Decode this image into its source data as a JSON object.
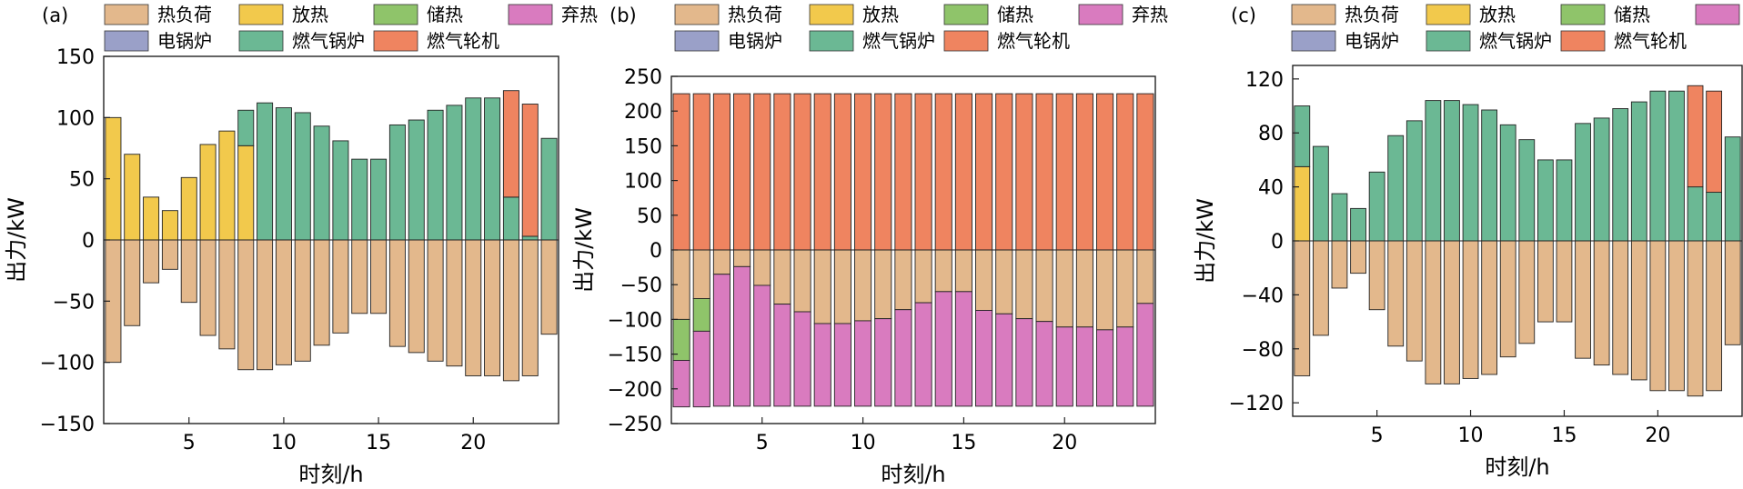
{
  "legend": {
    "items": [
      {
        "label": "热负荷",
        "color": "#E3B88C"
      },
      {
        "label": "放热",
        "color": "#F2C94C"
      },
      {
        "label": "储热",
        "color": "#8FC46A"
      },
      {
        "label": "弃热",
        "color": "#D97BBF"
      },
      {
        "label": "电锅炉",
        "color": "#9AA0C8"
      },
      {
        "label": "燃气锅炉",
        "color": "#6BB894"
      },
      {
        "label": "燃气轮机",
        "color": "#EF8460"
      }
    ]
  },
  "chart_data": [
    {
      "type": "bar",
      "panel_label": "(a)",
      "xlabel": "时刻/h",
      "ylabel": "出力/kW",
      "ylim": [
        -150,
        150
      ],
      "yticks": [
        -150,
        -100,
        -50,
        0,
        50,
        100,
        150
      ],
      "yticklabels": [
        "−150",
        "−100",
        "−50",
        "0",
        "50",
        "100",
        "150"
      ],
      "xticks": [
        5,
        10,
        15,
        20
      ],
      "x": [
        1,
        2,
        3,
        4,
        5,
        6,
        7,
        8,
        9,
        10,
        11,
        12,
        13,
        14,
        15,
        16,
        17,
        18,
        19,
        20,
        21,
        22,
        23,
        24
      ],
      "series": [
        {
          "name": "热负荷",
          "values": [
            -100,
            -70,
            -35,
            -24,
            -51,
            -78,
            -89,
            -106,
            -106,
            -102,
            -99,
            -86,
            -76,
            -60,
            -60,
            -87,
            -92,
            -99,
            -103,
            -111,
            -111,
            -115,
            -111,
            -77
          ]
        },
        {
          "name": "放热",
          "values": [
            100,
            70,
            35,
            24,
            51,
            78,
            89,
            77,
            0,
            0,
            0,
            0,
            0,
            0,
            0,
            0,
            0,
            0,
            0,
            0,
            0,
            0,
            0,
            0
          ]
        },
        {
          "name": "储热",
          "values": [
            0,
            0,
            0,
            0,
            0,
            0,
            0,
            0,
            0,
            0,
            0,
            0,
            0,
            0,
            0,
            0,
            0,
            0,
            0,
            0,
            0,
            0,
            0,
            0
          ]
        },
        {
          "name": "弃热",
          "values": [
            0,
            0,
            0,
            0,
            0,
            0,
            0,
            0,
            0,
            0,
            0,
            0,
            0,
            0,
            0,
            0,
            0,
            0,
            0,
            0,
            0,
            0,
            0,
            0
          ]
        },
        {
          "name": "电锅炉",
          "values": [
            0,
            0,
            0,
            0,
            0,
            0,
            0,
            0,
            0,
            0,
            0,
            0,
            0,
            0,
            0,
            0,
            0,
            0,
            0,
            0,
            0,
            0,
            0,
            0
          ]
        },
        {
          "name": "燃气锅炉",
          "values": [
            0,
            0,
            0,
            0,
            0,
            0,
            0,
            29,
            112,
            108,
            104,
            93,
            81,
            66,
            66,
            94,
            98,
            106,
            110,
            116,
            116,
            35,
            3,
            83
          ]
        },
        {
          "name": "燃气轮机",
          "values": [
            0,
            0,
            0,
            0,
            0,
            0,
            0,
            0,
            0,
            0,
            0,
            0,
            0,
            0,
            0,
            0,
            0,
            0,
            0,
            0,
            0,
            87,
            108,
            0
          ]
        }
      ]
    },
    {
      "type": "bar",
      "panel_label": "(b)",
      "xlabel": "时刻/h",
      "ylabel": "出力/kW",
      "ylim": [
        -250,
        250
      ],
      "yticks": [
        -250,
        -200,
        -150,
        -100,
        -50,
        0,
        50,
        100,
        150,
        200,
        250
      ],
      "yticklabels": [
        "−250",
        "−200",
        "−150",
        "−100",
        "−50",
        "0",
        "50",
        "100",
        "150",
        "200",
        "250"
      ],
      "xticks": [
        5,
        10,
        15,
        20
      ],
      "x": [
        1,
        2,
        3,
        4,
        5,
        6,
        7,
        8,
        9,
        10,
        11,
        12,
        13,
        14,
        15,
        16,
        17,
        18,
        19,
        20,
        21,
        22,
        23,
        24
      ],
      "series": [
        {
          "name": "热负荷",
          "values": [
            -100,
            -70,
            -35,
            -24,
            -51,
            -78,
            -89,
            -106,
            -106,
            -102,
            -99,
            -86,
            -76,
            -60,
            -60,
            -87,
            -92,
            -99,
            -103,
            -111,
            -111,
            -115,
            -111,
            -77
          ]
        },
        {
          "name": "放热",
          "values": [
            0,
            0,
            0,
            0,
            0,
            0,
            0,
            0,
            0,
            0,
            0,
            0,
            0,
            0,
            0,
            0,
            0,
            0,
            0,
            0,
            0,
            0,
            0,
            0
          ]
        },
        {
          "name": "储热",
          "values": [
            -59,
            -47,
            0,
            0,
            0,
            0,
            0,
            0,
            0,
            0,
            0,
            0,
            0,
            0,
            0,
            0,
            0,
            0,
            0,
            0,
            0,
            0,
            0,
            0
          ]
        },
        {
          "name": "弃热",
          "values": [
            -67,
            -109,
            -190,
            -201,
            -174,
            -147,
            -136,
            -119,
            -119,
            -123,
            -126,
            -139,
            -149,
            -165,
            -165,
            -138,
            -133,
            -126,
            -122,
            -114,
            -114,
            -110,
            -114,
            -148
          ]
        },
        {
          "name": "电锅炉",
          "values": [
            0,
            0,
            0,
            0,
            0,
            0,
            0,
            0,
            0,
            0,
            0,
            0,
            0,
            0,
            0,
            0,
            0,
            0,
            0,
            0,
            0,
            0,
            0,
            0
          ]
        },
        {
          "name": "燃气锅炉",
          "values": [
            0,
            0,
            0,
            0,
            0,
            0,
            0,
            0,
            0,
            0,
            0,
            0,
            0,
            0,
            0,
            0,
            0,
            0,
            0,
            0,
            0,
            0,
            0,
            0
          ]
        },
        {
          "name": "燃气轮机",
          "values": [
            225,
            225,
            225,
            225,
            225,
            225,
            225,
            225,
            225,
            225,
            225,
            225,
            225,
            225,
            225,
            225,
            225,
            225,
            225,
            225,
            225,
            225,
            225,
            225
          ]
        }
      ]
    },
    {
      "type": "bar",
      "panel_label": "(c)",
      "xlabel": "时刻/h",
      "ylabel": "出力/kW",
      "ylim": [
        -130,
        130
      ],
      "yticks": [
        -120,
        -80,
        -40,
        0,
        40,
        80,
        120
      ],
      "yticklabels": [
        "−120",
        "−80",
        "−40",
        "0",
        "40",
        "80",
        "120"
      ],
      "xticks": [
        5,
        10,
        15,
        20
      ],
      "x": [
        1,
        2,
        3,
        4,
        5,
        6,
        7,
        8,
        9,
        10,
        11,
        12,
        13,
        14,
        15,
        16,
        17,
        18,
        19,
        20,
        21,
        22,
        23,
        24
      ],
      "series": [
        {
          "name": "热负荷",
          "values": [
            -100,
            -70,
            -35,
            -24,
            -51,
            -78,
            -89,
            -106,
            -106,
            -102,
            -99,
            -86,
            -76,
            -60,
            -60,
            -87,
            -92,
            -99,
            -103,
            -111,
            -111,
            -115,
            -111,
            -77
          ]
        },
        {
          "name": "放热",
          "values": [
            55,
            0,
            0,
            0,
            0,
            0,
            0,
            0,
            0,
            0,
            0,
            0,
            0,
            0,
            0,
            0,
            0,
            0,
            0,
            0,
            0,
            0,
            0,
            0
          ]
        },
        {
          "name": "储热",
          "values": [
            0,
            0,
            0,
            0,
            0,
            0,
            0,
            0,
            0,
            0,
            0,
            0,
            0,
            0,
            0,
            0,
            0,
            0,
            0,
            0,
            0,
            0,
            0,
            0
          ]
        },
        {
          "name": "弃热",
          "values": [
            0,
            0,
            0,
            0,
            0,
            0,
            0,
            0,
            0,
            0,
            0,
            0,
            0,
            0,
            0,
            0,
            0,
            0,
            0,
            0,
            0,
            0,
            0,
            0
          ]
        },
        {
          "name": "电锅炉",
          "values": [
            0,
            0,
            0,
            0,
            0,
            0,
            0,
            0,
            0,
            0,
            0,
            0,
            0,
            0,
            0,
            0,
            0,
            0,
            0,
            0,
            0,
            0,
            0,
            0
          ]
        },
        {
          "name": "燃气锅炉",
          "values": [
            45,
            70,
            35,
            24,
            51,
            78,
            89,
            104,
            104,
            101,
            97,
            86,
            75,
            60,
            60,
            87,
            91,
            98,
            103,
            111,
            111,
            40,
            36,
            77
          ]
        },
        {
          "name": "燃气轮机",
          "values": [
            0,
            0,
            0,
            0,
            0,
            0,
            0,
            0,
            0,
            0,
            0,
            0,
            0,
            0,
            0,
            0,
            0,
            0,
            0,
            0,
            0,
            75,
            75,
            0
          ]
        }
      ]
    }
  ]
}
